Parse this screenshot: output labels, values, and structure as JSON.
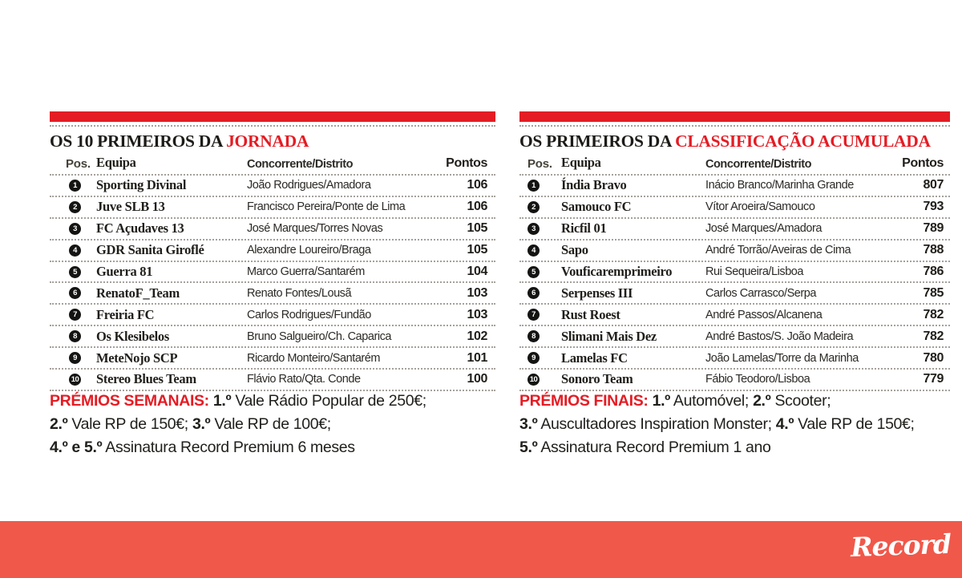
{
  "colors": {
    "accent_red": "#e41c24",
    "footer_band": "#f0584a",
    "badge_black": "#141412"
  },
  "brand": {
    "logo_text": "Record"
  },
  "tables": [
    {
      "title_black": "OS 10 PRIMEIROS DA ",
      "title_red": "JORNADA",
      "columns": {
        "pos": "Pos.",
        "team": "Equipa",
        "competitor": "Concorrente/Distrito",
        "points": "Pontos"
      },
      "rows": [
        {
          "pos": "1",
          "team": "Sporting Divinal",
          "competitor": "João Rodrigues/Amadora",
          "points": "106"
        },
        {
          "pos": "2",
          "team": "Juve SLB 13",
          "competitor": "Francisco Pereira/Ponte de Lima",
          "points": "106"
        },
        {
          "pos": "3",
          "team": "FC Açudaves 13",
          "competitor": "José Marques/Torres Novas",
          "points": "105"
        },
        {
          "pos": "4",
          "team": "GDR Sanita Giroflé",
          "competitor": "Alexandre Loureiro/Braga",
          "points": "105"
        },
        {
          "pos": "5",
          "team": "Guerra 81",
          "competitor": "Marco Guerra/Santarém",
          "points": "104"
        },
        {
          "pos": "6",
          "team": "RenatoF_Team",
          "competitor": "Renato Fontes/Lousã",
          "points": "103"
        },
        {
          "pos": "7",
          "team": "Freiria FC",
          "competitor": "Carlos Rodrigues/Fundão",
          "points": "103"
        },
        {
          "pos": "8",
          "team": "Os Klesibelos",
          "competitor": "Bruno Salgueiro/Ch. Caparica",
          "points": "102"
        },
        {
          "pos": "9",
          "team": "MeteNojo SCP",
          "competitor": "Ricardo Monteiro/Santarém",
          "points": "101"
        },
        {
          "pos": "10",
          "team": "Stereo Blues Team",
          "competitor": "Flávio Rato/Qta. Conde",
          "points": "100"
        }
      ]
    },
    {
      "title_black": "OS PRIMEIROS DA ",
      "title_red": "CLASSIFICAÇÃO ACUMULADA",
      "columns": {
        "pos": "Pos.",
        "team": "Equipa",
        "competitor": "Concorrente/Distrito",
        "points": "Pontos"
      },
      "rows": [
        {
          "pos": "1",
          "team": "Índia Bravo",
          "competitor": "Inácio Branco/Marinha Grande",
          "points": "807"
        },
        {
          "pos": "2",
          "team": "Samouco FC",
          "competitor": "Vítor Aroeira/Samouco",
          "points": "793"
        },
        {
          "pos": "3",
          "team": "Ricfil 01",
          "competitor": "José Marques/Amadora",
          "points": "789"
        },
        {
          "pos": "4",
          "team": "Sapo",
          "competitor": "André Torrão/Aveiras de Cima",
          "points": "788"
        },
        {
          "pos": "5",
          "team": "Vouficaremprimeiro",
          "competitor": "Rui Sequeira/Lisboa",
          "points": "786"
        },
        {
          "pos": "6",
          "team": "Serpenses III",
          "competitor": "Carlos Carrasco/Serpa",
          "points": "785"
        },
        {
          "pos": "7",
          "team": "Rust Roest",
          "competitor": "André Passos/Alcanena",
          "points": "782"
        },
        {
          "pos": "8",
          "team": "Slimani Mais Dez",
          "competitor": "André Bastos/S. João Madeira",
          "points": "782"
        },
        {
          "pos": "9",
          "team": "Lamelas FC",
          "competitor": "João Lamelas/Torre da Marinha",
          "points": "780"
        },
        {
          "pos": "10",
          "team": "Sonoro Team",
          "competitor": "Fábio Teodoro/Lisboa",
          "points": "779"
        }
      ]
    }
  ],
  "prizes": [
    {
      "label": "PRÉMIOS SEMANAIS:",
      "lines": [
        [
          {
            "bold": "1.º",
            "text": " Vale Rádio Popular de 250€;"
          }
        ],
        [
          {
            "bold": "2.º",
            "text": " Vale RP de 150€;"
          },
          {
            "bold": "3.º",
            "text": " Vale RP de 100€;"
          }
        ],
        [
          {
            "bold": "4.º e 5.º",
            "text": " Assinatura Record Premium 6 meses"
          }
        ]
      ]
    },
    {
      "label": "PRÉMIOS FINAIS:",
      "lines": [
        [
          {
            "bold": "1.º",
            "text": " Automóvel;"
          },
          {
            "bold": "2.º",
            "text": " Scooter;"
          }
        ],
        [
          {
            "bold": "3.º",
            "text": " Auscultadores Inspiration Monster;"
          },
          {
            "bold": "4.º",
            "text": " Vale RP de 150€;"
          }
        ],
        [
          {
            "bold": "5.º",
            "text": " Assinatura Record Premium 1 ano"
          }
        ]
      ]
    }
  ]
}
